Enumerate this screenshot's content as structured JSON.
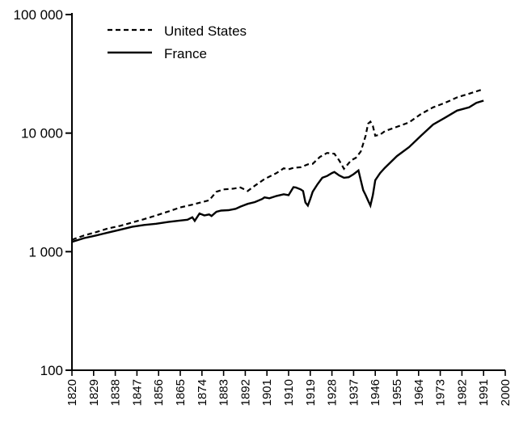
{
  "chart_data": {
    "type": "line",
    "title": "",
    "xlabel": "",
    "ylabel": "",
    "y_scale": "log",
    "ylim": [
      100,
      100000
    ],
    "xlim": [
      1820,
      2000
    ],
    "y_ticks": [
      {
        "value": 100,
        "label": "100"
      },
      {
        "value": 1000,
        "label": "1 000"
      },
      {
        "value": 10000,
        "label": "10 000"
      },
      {
        "value": 100000,
        "label": "100 000"
      }
    ],
    "x_ticks": [
      {
        "value": 1820,
        "label": "1820"
      },
      {
        "value": 1829,
        "label": "1829"
      },
      {
        "value": 1838,
        "label": "1838"
      },
      {
        "value": 1847,
        "label": "1847"
      },
      {
        "value": 1856,
        "label": "1856"
      },
      {
        "value": 1865,
        "label": "1865"
      },
      {
        "value": 1874,
        "label": "1874"
      },
      {
        "value": 1883,
        "label": "1883"
      },
      {
        "value": 1892,
        "label": "1892"
      },
      {
        "value": 1901,
        "label": "1901"
      },
      {
        "value": 1910,
        "label": "1910"
      },
      {
        "value": 1919,
        "label": "1919"
      },
      {
        "value": 1928,
        "label": "1928"
      },
      {
        "value": 1937,
        "label": "1937"
      },
      {
        "value": 1946,
        "label": "1946"
      },
      {
        "value": 1955,
        "label": "1955"
      },
      {
        "value": 1964,
        "label": "1964"
      },
      {
        "value": 1973,
        "label": "1973"
      },
      {
        "value": 1982,
        "label": "1982"
      },
      {
        "value": 1991,
        "label": "1991"
      },
      {
        "value": 2000,
        "label": "2000"
      }
    ],
    "grid": false,
    "legend_position": "top-left",
    "series": [
      {
        "name": "United States",
        "style": "dashed",
        "color": "#000000",
        "points": [
          [
            1820,
            1260
          ],
          [
            1825,
            1370
          ],
          [
            1830,
            1460
          ],
          [
            1835,
            1570
          ],
          [
            1840,
            1650
          ],
          [
            1845,
            1760
          ],
          [
            1850,
            1880
          ],
          [
            1855,
            2020
          ],
          [
            1860,
            2180
          ],
          [
            1865,
            2360
          ],
          [
            1870,
            2490
          ],
          [
            1874,
            2620
          ],
          [
            1877,
            2710
          ],
          [
            1880,
            3200
          ],
          [
            1883,
            3350
          ],
          [
            1887,
            3400
          ],
          [
            1890,
            3480
          ],
          [
            1893,
            3250
          ],
          [
            1896,
            3600
          ],
          [
            1900,
            4100
          ],
          [
            1905,
            4600
          ],
          [
            1908,
            5050
          ],
          [
            1910,
            4950
          ],
          [
            1912,
            5100
          ],
          [
            1915,
            5150
          ],
          [
            1918,
            5450
          ],
          [
            1920,
            5500
          ],
          [
            1923,
            6300
          ],
          [
            1926,
            6800
          ],
          [
            1929,
            6700
          ],
          [
            1931,
            5900
          ],
          [
            1933,
            5000
          ],
          [
            1936,
            5900
          ],
          [
            1938,
            6200
          ],
          [
            1940,
            7000
          ],
          [
            1942,
            9500
          ],
          [
            1943,
            12000
          ],
          [
            1944,
            12500
          ],
          [
            1945,
            11500
          ],
          [
            1946,
            9500
          ],
          [
            1948,
            9700
          ],
          [
            1950,
            10400
          ],
          [
            1955,
            11300
          ],
          [
            1960,
            12300
          ],
          [
            1965,
            14500
          ],
          [
            1970,
            16500
          ],
          [
            1975,
            18000
          ],
          [
            1980,
            20000
          ],
          [
            1985,
            21500
          ],
          [
            1991,
            23500
          ]
        ]
      },
      {
        "name": "France",
        "style": "solid",
        "color": "#000000",
        "points": [
          [
            1820,
            1210
          ],
          [
            1825,
            1300
          ],
          [
            1830,
            1370
          ],
          [
            1835,
            1450
          ],
          [
            1840,
            1530
          ],
          [
            1845,
            1620
          ],
          [
            1850,
            1680
          ],
          [
            1855,
            1720
          ],
          [
            1860,
            1780
          ],
          [
            1865,
            1830
          ],
          [
            1868,
            1860
          ],
          [
            1870,
            1950
          ],
          [
            1871,
            1820
          ],
          [
            1873,
            2100
          ],
          [
            1875,
            2020
          ],
          [
            1877,
            2060
          ],
          [
            1878,
            2000
          ],
          [
            1880,
            2170
          ],
          [
            1882,
            2220
          ],
          [
            1885,
            2240
          ],
          [
            1888,
            2300
          ],
          [
            1890,
            2400
          ],
          [
            1893,
            2530
          ],
          [
            1896,
            2620
          ],
          [
            1899,
            2780
          ],
          [
            1900,
            2870
          ],
          [
            1902,
            2820
          ],
          [
            1905,
            2950
          ],
          [
            1908,
            3050
          ],
          [
            1910,
            3000
          ],
          [
            1912,
            3500
          ],
          [
            1913,
            3480
          ],
          [
            1915,
            3350
          ],
          [
            1916,
            3250
          ],
          [
            1917,
            2600
          ],
          [
            1918,
            2450
          ],
          [
            1919,
            2780
          ],
          [
            1920,
            3200
          ],
          [
            1922,
            3700
          ],
          [
            1924,
            4200
          ],
          [
            1926,
            4350
          ],
          [
            1928,
            4600
          ],
          [
            1929,
            4700
          ],
          [
            1931,
            4400
          ],
          [
            1933,
            4200
          ],
          [
            1935,
            4250
          ],
          [
            1937,
            4500
          ],
          [
            1939,
            4850
          ],
          [
            1940,
            4000
          ],
          [
            1941,
            3300
          ],
          [
            1942,
            3000
          ],
          [
            1943,
            2700
          ],
          [
            1944,
            2450
          ],
          [
            1945,
            3000
          ],
          [
            1946,
            4000
          ],
          [
            1948,
            4600
          ],
          [
            1950,
            5100
          ],
          [
            1955,
            6400
          ],
          [
            1960,
            7600
          ],
          [
            1965,
            9500
          ],
          [
            1970,
            11800
          ],
          [
            1975,
            13500
          ],
          [
            1980,
            15500
          ],
          [
            1985,
            16500
          ],
          [
            1988,
            18000
          ],
          [
            1991,
            18800
          ]
        ]
      }
    ]
  }
}
